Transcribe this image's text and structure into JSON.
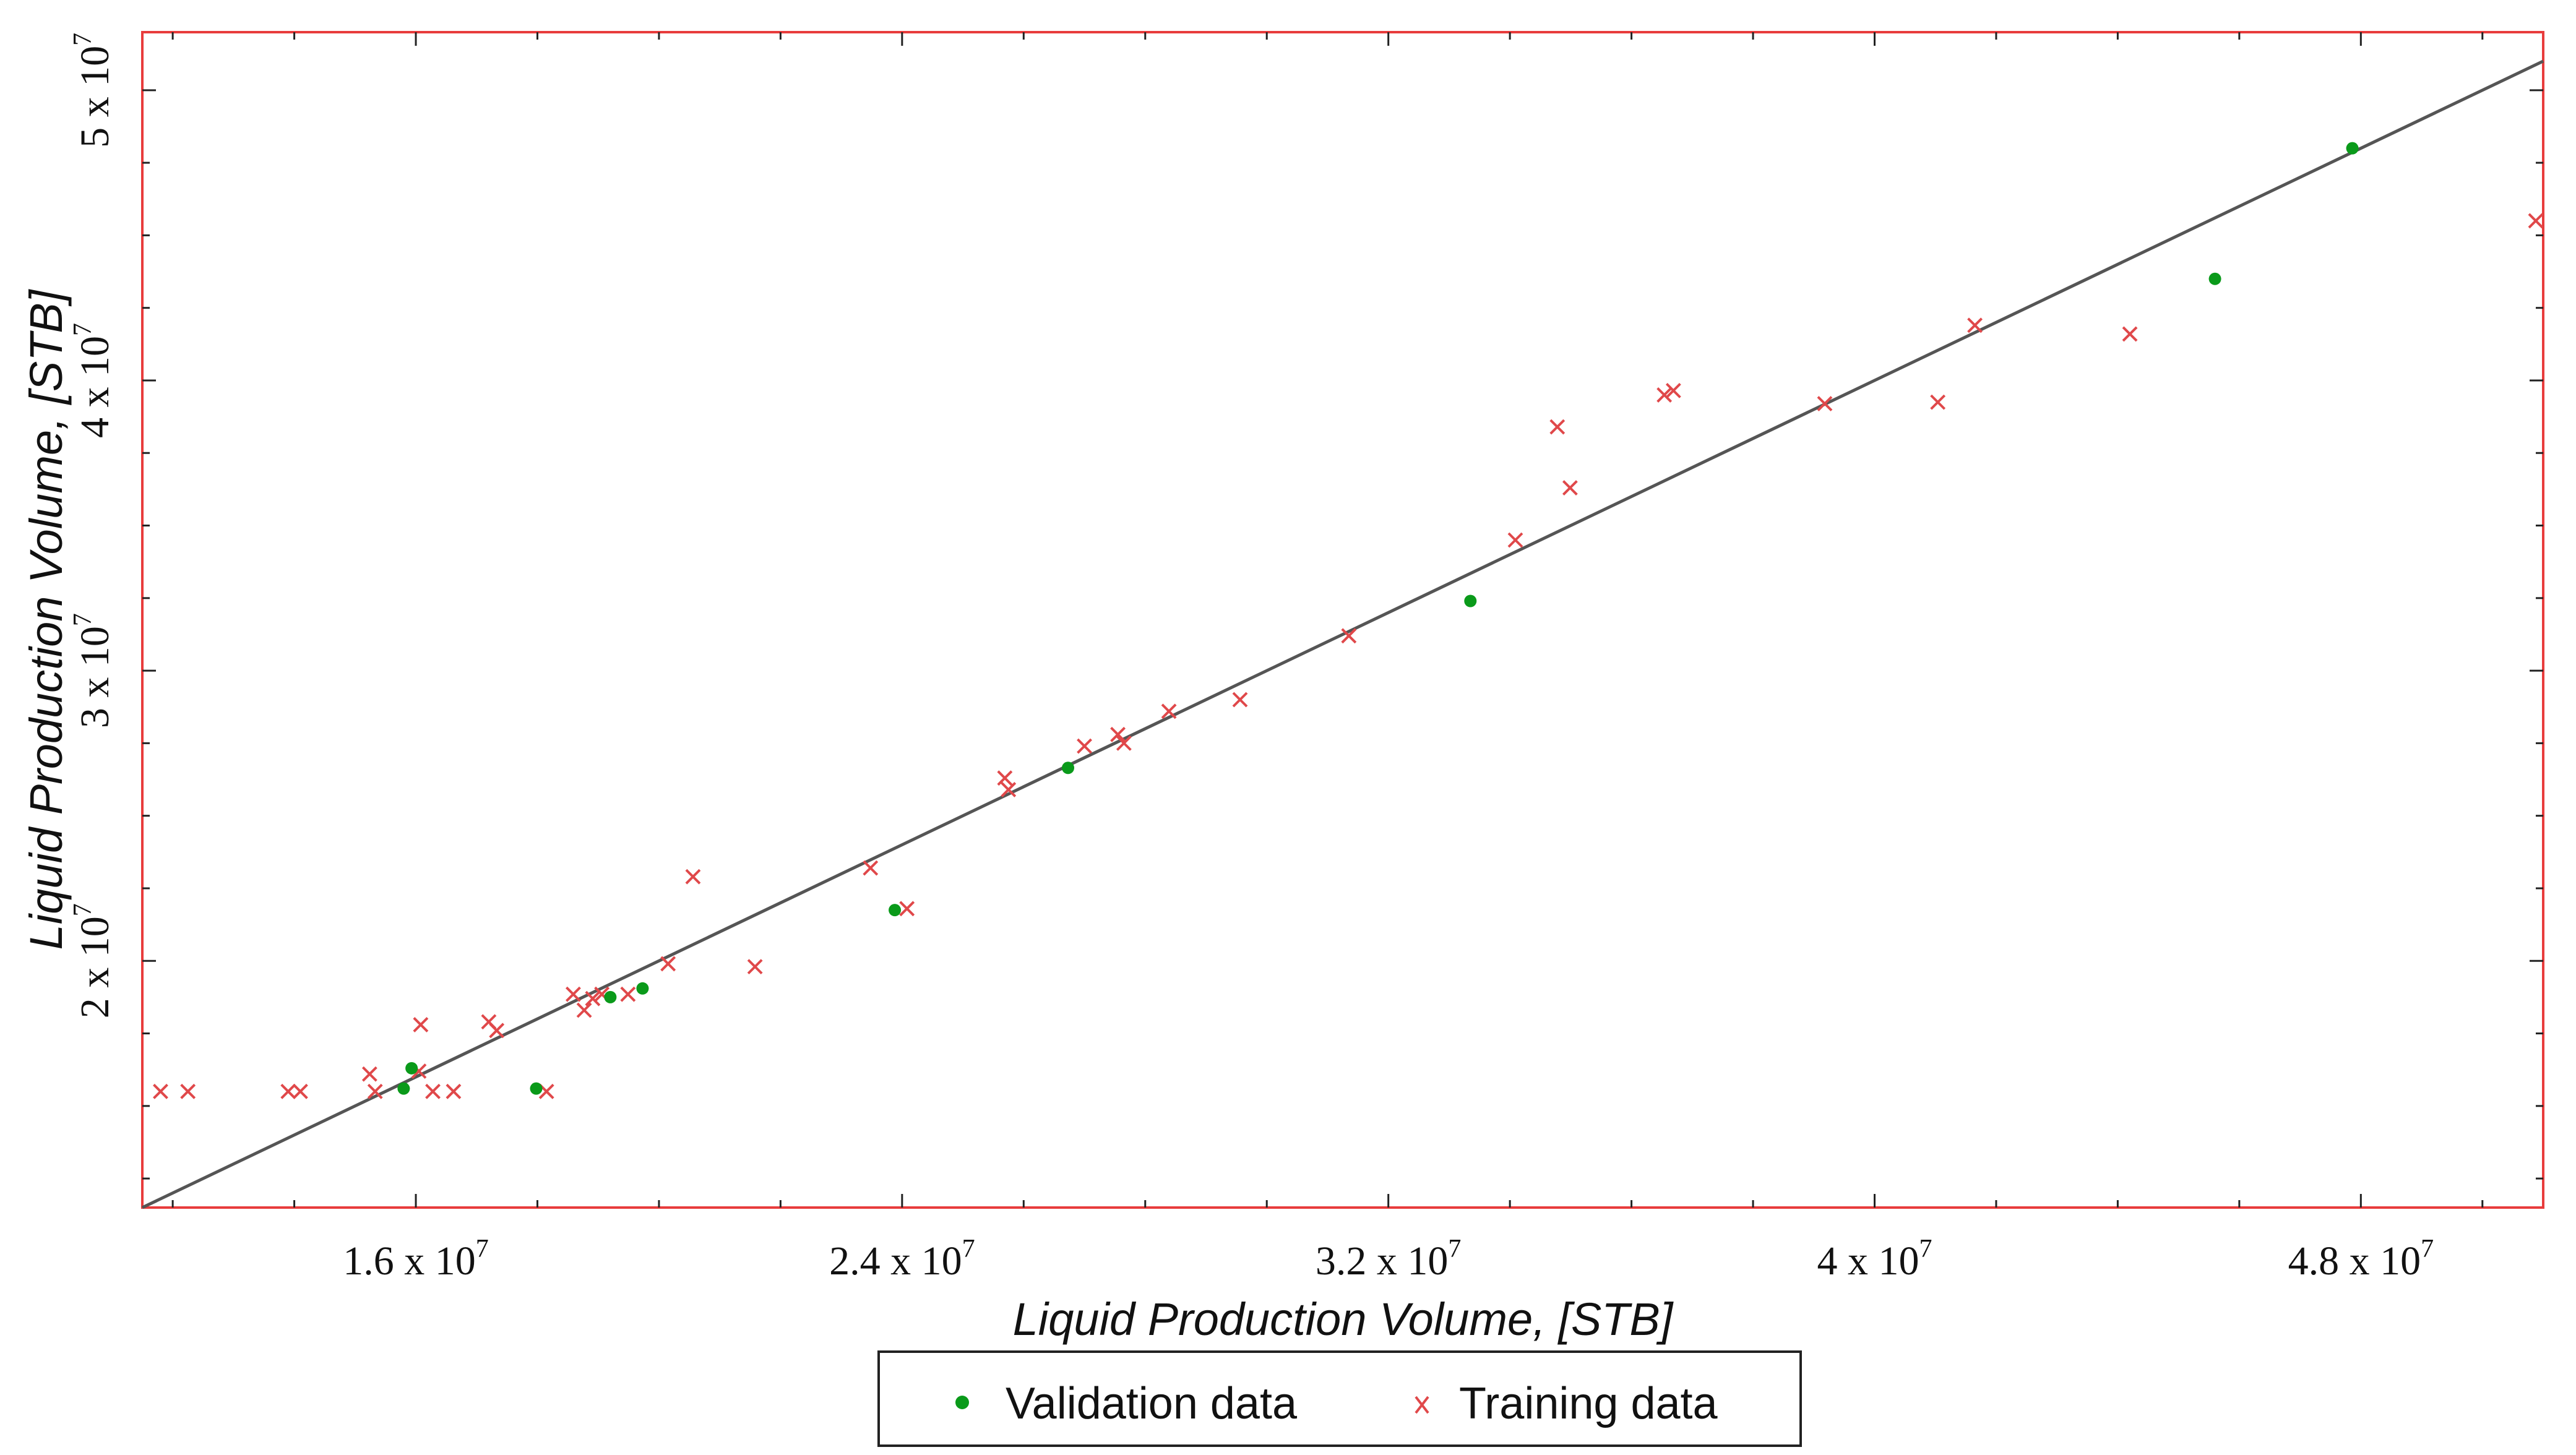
{
  "chart_data": {
    "type": "scatter",
    "title": "",
    "xlabel": "Liquid Production Volume, [STB]",
    "ylabel": "Liquid Production Volume, [STB]",
    "xlim": [
      11500000,
      51000000
    ],
    "ylim": [
      11500000,
      52000000
    ],
    "x_ticks": [
      {
        "value": 16000000,
        "mantissa": "1.6 x 10",
        "exp": "7"
      },
      {
        "value": 24000000,
        "mantissa": "2.4 x 10",
        "exp": "7"
      },
      {
        "value": 32000000,
        "mantissa": "3.2 x 10",
        "exp": "7"
      },
      {
        "value": 40000000,
        "mantissa": "4 x 10",
        "exp": "7"
      },
      {
        "value": 48000000,
        "mantissa": "4.8 x 10",
        "exp": "7"
      }
    ],
    "y_ticks": [
      {
        "value": 50000000,
        "mantissa": "5 x 10",
        "exp": "7"
      },
      {
        "value": 40000000,
        "mantissa": "4 x 10",
        "exp": "7"
      },
      {
        "value": 30000000,
        "mantissa": "3 x 10",
        "exp": "7"
      },
      {
        "value": 20000000,
        "mantissa": "2 x 10",
        "exp": "7"
      }
    ],
    "reference_line": {
      "name": "y = x",
      "color": "#555555"
    },
    "legend": {
      "placement": "bottom-center"
    },
    "series": [
      {
        "name": "Validation data",
        "marker": "dot",
        "color": "#0a9a1a",
        "points": [
          [
            15800000,
            15600000
          ],
          [
            15930000,
            16300000
          ],
          [
            17980000,
            15600000
          ],
          [
            19200000,
            18750000
          ],
          [
            19730000,
            19050000
          ],
          [
            23880000,
            21750000
          ],
          [
            26730000,
            26650000
          ],
          [
            33350000,
            32400000
          ],
          [
            45600000,
            43500000
          ],
          [
            47860000,
            48000000
          ]
        ]
      },
      {
        "name": "Training data",
        "marker": "x",
        "color": "#e0484a",
        "points": [
          [
            11800000,
            15500000
          ],
          [
            12250000,
            15500000
          ],
          [
            13900000,
            15500000
          ],
          [
            14100000,
            15500000
          ],
          [
            15240000,
            16100000
          ],
          [
            15330000,
            15500000
          ],
          [
            16050000,
            16200000
          ],
          [
            16080000,
            17800000
          ],
          [
            16280000,
            15500000
          ],
          [
            16620000,
            15500000
          ],
          [
            17200000,
            17900000
          ],
          [
            17330000,
            17600000
          ],
          [
            18150000,
            15500000
          ],
          [
            18590000,
            18850000
          ],
          [
            18770000,
            18300000
          ],
          [
            18910000,
            18700000
          ],
          [
            19060000,
            18850000
          ],
          [
            19490000,
            18850000
          ],
          [
            20150000,
            19900000
          ],
          [
            20560000,
            22900000
          ],
          [
            21580000,
            19800000
          ],
          [
            23480000,
            23200000
          ],
          [
            24080000,
            21800000
          ],
          [
            25690000,
            26300000
          ],
          [
            25750000,
            25900000
          ],
          [
            27000000,
            27400000
          ],
          [
            27550000,
            27800000
          ],
          [
            27650000,
            27500000
          ],
          [
            28390000,
            28600000
          ],
          [
            29560000,
            29000000
          ],
          [
            31350000,
            31200000
          ],
          [
            34090000,
            34500000
          ],
          [
            34780000,
            38400000
          ],
          [
            34990000,
            36300000
          ],
          [
            36540000,
            39500000
          ],
          [
            36690000,
            39650000
          ],
          [
            39180000,
            39200000
          ],
          [
            41040000,
            39250000
          ],
          [
            41650000,
            41900000
          ],
          [
            44200000,
            41600000
          ],
          [
            52100000,
            45500000
          ]
        ]
      }
    ]
  }
}
